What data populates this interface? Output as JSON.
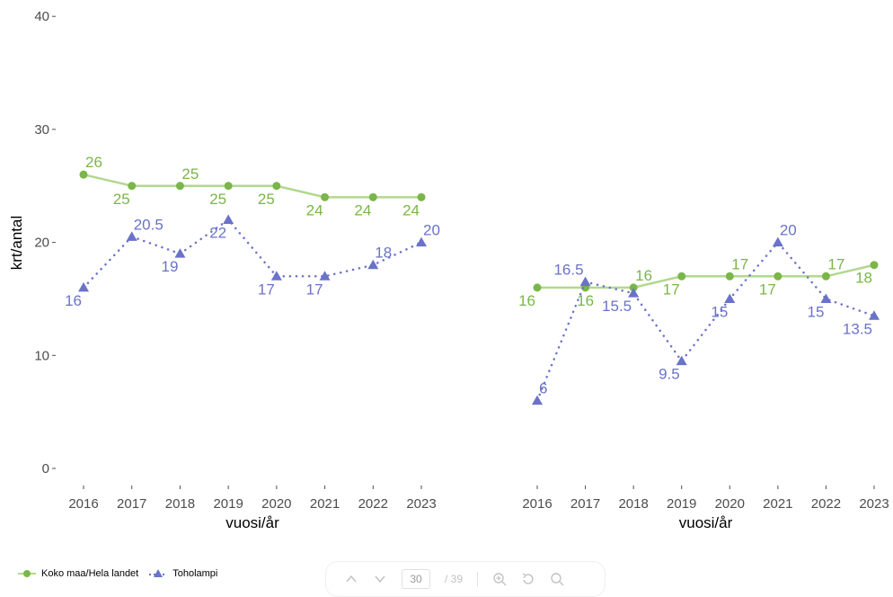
{
  "chart_data": [
    {
      "type": "line",
      "ylabel": "krt/antal",
      "xlabel": "vuosi/år",
      "ylim": [
        0,
        40
      ],
      "yticks": [
        0,
        10,
        20,
        30,
        40
      ],
      "categories": [
        "2016",
        "2017",
        "2018",
        "2019",
        "2020",
        "2021",
        "2022",
        "2023"
      ],
      "series": [
        {
          "name": "Koko maa/Hela landet",
          "values": [
            26,
            25,
            25,
            25,
            25,
            24,
            24,
            24
          ],
          "labels": [
            "26",
            "25",
            "25",
            "25",
            "25",
            "24",
            "24",
            "24"
          ],
          "color": "#7ab648",
          "line_color": "#b2d88f",
          "marker": "circle",
          "line_style": "solid"
        },
        {
          "name": "Toholampi",
          "values": [
            16,
            20.5,
            19,
            22,
            17,
            17,
            18,
            20
          ],
          "labels": [
            "16",
            "20.5",
            "19",
            "22",
            "17",
            "17",
            "18",
            "20"
          ],
          "color": "#6b72c9",
          "line_color": "#6b72c9",
          "marker": "triangle",
          "line_style": "dotted"
        }
      ]
    },
    {
      "type": "line",
      "xlabel": "vuosi/år",
      "ylim": [
        0,
        40
      ],
      "categories": [
        "2016",
        "2017",
        "2018",
        "2019",
        "2020",
        "2021",
        "2022",
        "2023"
      ],
      "series": [
        {
          "name": "Koko maa/Hela landet",
          "values": [
            16,
            16,
            16,
            17,
            17,
            17,
            17,
            18
          ],
          "labels": [
            "16",
            "16",
            "16",
            "17",
            "17",
            "17",
            "17",
            "18"
          ],
          "color": "#7ab648",
          "line_color": "#b2d88f",
          "marker": "circle",
          "line_style": "solid"
        },
        {
          "name": "Toholampi",
          "values": [
            6,
            16.5,
            15.5,
            9.5,
            15,
            20,
            15,
            13.5
          ],
          "labels": [
            "6",
            "16.5",
            "15.5",
            "9.5",
            "15",
            "20",
            "15",
            "13.5"
          ],
          "color": "#6b72c9",
          "line_color": "#6b72c9",
          "marker": "triangle",
          "line_style": "dotted"
        }
      ]
    }
  ],
  "legend": {
    "items": [
      {
        "label": "Koko maa/Hela landet",
        "icon": "green-circle-line-icon"
      },
      {
        "label": "Toholampi",
        "icon": "blue-triangle-line-icon"
      }
    ]
  },
  "pager": {
    "current_page": "30",
    "total_pages": "/ 39",
    "icons": [
      "chevron-up-icon",
      "chevron-down-icon",
      "zoom-in-icon",
      "rotate-icon",
      "search-icon"
    ]
  }
}
